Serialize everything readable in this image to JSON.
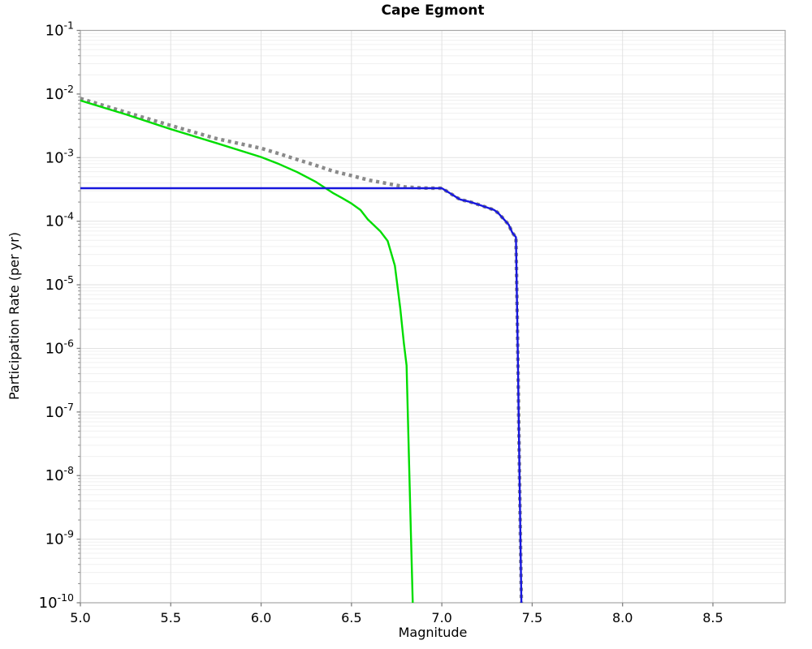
{
  "chart_data": {
    "type": "line",
    "title": "Cape Egmont",
    "xlabel": "Magnitude",
    "ylabel": "Participation Rate (per yr)",
    "x_axis": {
      "min": 5.0,
      "max": 8.9,
      "scale": "linear",
      "ticks": [
        5.0,
        5.5,
        6.0,
        6.5,
        7.0,
        7.5,
        8.0,
        8.5
      ]
    },
    "y_axis": {
      "min": 1e-10,
      "max": 0.1,
      "scale": "log",
      "tick_exponents": [
        -1,
        -2,
        -3,
        -4,
        -5,
        -6,
        -7,
        -8,
        -9,
        -10
      ]
    },
    "grid": {
      "x_major": true,
      "y_major": true,
      "y_minor": true,
      "legend": "none"
    },
    "colors": {
      "major_grid": "#e2e2e2",
      "minor_grid": "#f0f0f0",
      "spine": "#a6a6a6",
      "tick": "#808080",
      "text": "#000000"
    },
    "series": [
      {
        "name": "total-rate-dotted",
        "color": "#8a8a8a",
        "style": "dotted",
        "width": 4.4,
        "points": [
          [
            5.0,
            0.0085
          ],
          [
            5.25,
            0.0052
          ],
          [
            5.5,
            0.0032
          ],
          [
            5.75,
            0.002
          ],
          [
            6.0,
            0.0014
          ],
          [
            6.1,
            0.00115
          ],
          [
            6.2,
            0.00093
          ],
          [
            6.3,
            0.00076
          ],
          [
            6.4,
            0.00061
          ],
          [
            6.5,
            0.00052
          ],
          [
            6.6,
            0.00044
          ],
          [
            6.7,
            0.00039
          ],
          [
            6.8,
            0.000345
          ],
          [
            6.9,
            0.000332
          ],
          [
            7.0,
            0.00033
          ],
          [
            7.05,
            0.00027
          ],
          [
            7.1,
            0.00022
          ],
          [
            7.16,
            0.0002
          ],
          [
            7.21,
            0.00018
          ],
          [
            7.29,
            0.00015
          ],
          [
            7.31,
            0.000136
          ],
          [
            7.34,
            0.00011
          ],
          [
            7.37,
            8.8e-05
          ],
          [
            7.39,
            6.6e-05
          ],
          [
            7.41,
            5.6e-05
          ],
          [
            7.42,
            1e-06
          ],
          [
            7.43,
            1e-08
          ],
          [
            7.44,
            1e-10
          ]
        ]
      },
      {
        "name": "green-branch",
        "color": "#00dd00",
        "style": "solid",
        "width": 2.4,
        "points": [
          [
            5.0,
            0.0079
          ],
          [
            5.25,
            0.0048
          ],
          [
            5.5,
            0.0028
          ],
          [
            5.75,
            0.0017
          ],
          [
            6.0,
            0.00102
          ],
          [
            6.1,
            0.00079
          ],
          [
            6.2,
            0.00059
          ],
          [
            6.3,
            0.00042
          ],
          [
            6.35,
            0.00034
          ],
          [
            6.4,
            0.000275
          ],
          [
            6.45,
            0.00023
          ],
          [
            6.5,
            0.00019
          ],
          [
            6.55,
            0.00015
          ],
          [
            6.59,
            0.000107
          ],
          [
            6.66,
            6.9e-05
          ],
          [
            6.7,
            4.9e-05
          ],
          [
            6.74,
            2e-05
          ],
          [
            6.77,
            4.3e-06
          ],
          [
            6.79,
            1.2e-06
          ],
          [
            6.805,
            5.4e-07
          ],
          [
            6.827,
            2e-09
          ],
          [
            6.839,
            1e-10
          ]
        ]
      },
      {
        "name": "blue-branch",
        "color": "#1717dd",
        "style": "solid",
        "width": 2.4,
        "points": [
          [
            5.0,
            0.00033
          ],
          [
            7.0,
            0.00033
          ],
          [
            7.05,
            0.00027
          ],
          [
            7.1,
            0.00022
          ],
          [
            7.16,
            0.0002
          ],
          [
            7.21,
            0.00018
          ],
          [
            7.29,
            0.00015
          ],
          [
            7.31,
            0.000136
          ],
          [
            7.34,
            0.00011
          ],
          [
            7.37,
            8.8e-05
          ],
          [
            7.39,
            6.6e-05
          ],
          [
            7.41,
            5.6e-05
          ],
          [
            7.42,
            1e-06
          ],
          [
            7.43,
            1e-08
          ],
          [
            7.44,
            1e-10
          ]
        ]
      }
    ]
  }
}
